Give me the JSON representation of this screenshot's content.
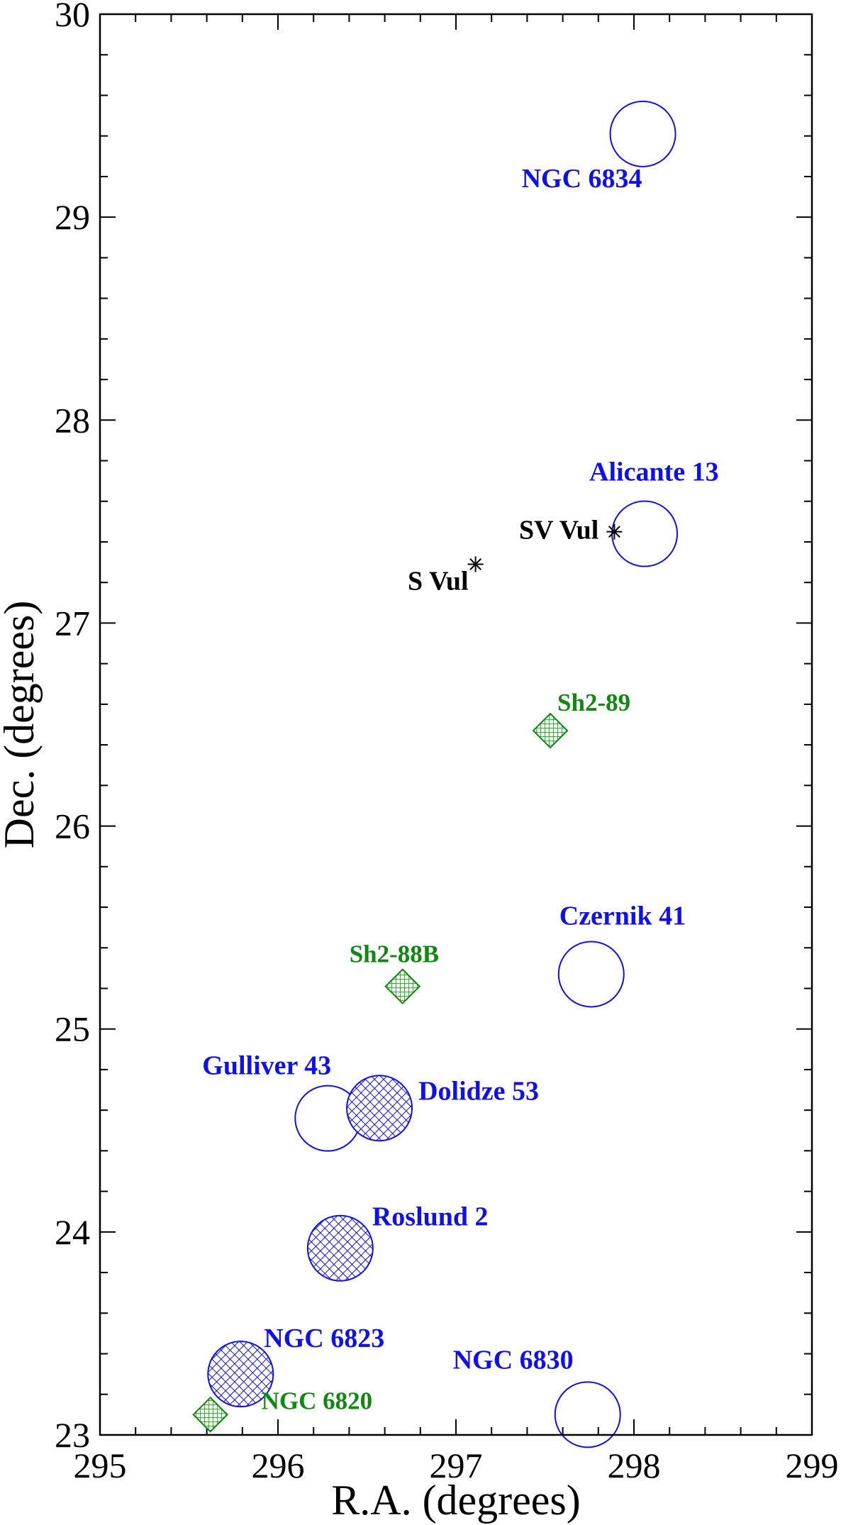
{
  "chart_data": {
    "type": "scatter",
    "title": "",
    "xlabel": "R.A. (degrees)",
    "ylabel": "Dec. (degrees)",
    "xlim": [
      295,
      299
    ],
    "ylim": [
      23,
      30
    ],
    "x_ticks": [
      295,
      296,
      297,
      298,
      299
    ],
    "y_ticks": [
      23,
      24,
      25,
      26,
      27,
      28,
      29,
      30
    ],
    "x_tick_labels": [
      "295",
      "296",
      "297",
      "298",
      "299"
    ],
    "y_tick_labels": [
      "23",
      "24",
      "25",
      "26",
      "27",
      "28",
      "29",
      "30"
    ],
    "grid": false,
    "colors": {
      "cluster": "#1010ee",
      "nebula": "#118811",
      "star": "#000000"
    },
    "series": [
      {
        "kind": "open-circle",
        "points": [
          {
            "label": "NGC 6834",
            "x": 298.05,
            "y": 29.41
          },
          {
            "label": "Alicante 13",
            "x": 298.06,
            "y": 27.44
          },
          {
            "label": "Czernik 41",
            "x": 297.76,
            "y": 25.27
          },
          {
            "label": "Gulliver 43",
            "x": 296.28,
            "y": 24.56
          },
          {
            "label": "NGC 6830",
            "x": 297.74,
            "y": 23.1
          }
        ]
      },
      {
        "kind": "hatched-circle",
        "points": [
          {
            "label": "Dolidze 53",
            "x": 296.57,
            "y": 24.61
          },
          {
            "label": "Roslund 2",
            "x": 296.35,
            "y": 23.92
          },
          {
            "label": "NGC 6823",
            "x": 295.79,
            "y": 23.3
          }
        ]
      },
      {
        "kind": "hatched-diamond",
        "points": [
          {
            "label": "Sh2-89",
            "x": 297.53,
            "y": 26.47
          },
          {
            "label": "Sh2-88B",
            "x": 296.7,
            "y": 25.21
          },
          {
            "label": "NGC 6820",
            "x": 295.62,
            "y": 23.1
          }
        ]
      },
      {
        "kind": "star",
        "points": [
          {
            "label": "SV Vul",
            "x": 297.89,
            "y": 27.45
          },
          {
            "label": "S Vul",
            "x": 297.11,
            "y": 27.29
          }
        ]
      }
    ]
  }
}
